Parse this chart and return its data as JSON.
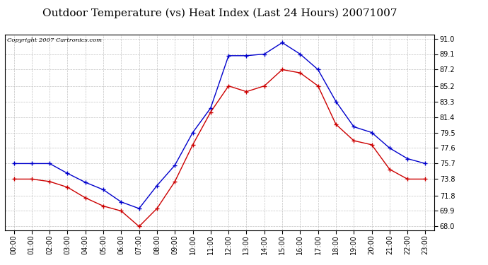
{
  "title": "Outdoor Temperature (vs) Heat Index (Last 24 Hours) 20071007",
  "copyright": "Copyright 2007 Cartronics.com",
  "hours": [
    "00:00",
    "01:00",
    "02:00",
    "03:00",
    "04:00",
    "05:00",
    "06:00",
    "07:00",
    "08:00",
    "09:00",
    "10:00",
    "11:00",
    "12:00",
    "13:00",
    "14:00",
    "15:00",
    "16:00",
    "17:00",
    "18:00",
    "19:00",
    "20:00",
    "21:00",
    "22:00",
    "23:00"
  ],
  "blue_temp": [
    75.7,
    75.7,
    75.7,
    74.5,
    73.4,
    72.5,
    71.0,
    70.2,
    73.0,
    75.5,
    79.5,
    82.5,
    88.9,
    88.9,
    89.1,
    90.5,
    89.1,
    87.2,
    83.3,
    80.2,
    79.5,
    77.6,
    76.3,
    75.7
  ],
  "red_heat": [
    73.8,
    73.8,
    73.5,
    72.8,
    71.5,
    70.5,
    69.9,
    68.0,
    70.2,
    73.5,
    78.0,
    82.0,
    85.2,
    84.5,
    85.2,
    87.2,
    86.8,
    85.2,
    80.5,
    78.5,
    78.0,
    75.0,
    73.8,
    73.8
  ],
  "ylim_min": 67.5,
  "ylim_max": 91.5,
  "yticks": [
    68.0,
    69.9,
    71.8,
    73.8,
    75.7,
    77.6,
    79.5,
    81.4,
    83.3,
    85.2,
    87.2,
    89.1,
    91.0
  ],
  "bg_color": "#ffffff",
  "grid_color": "#bbbbbb",
  "blue_color": "#0000cc",
  "red_color": "#cc0000",
  "title_fontsize": 11,
  "tick_fontsize": 7,
  "copyright_fontsize": 6
}
